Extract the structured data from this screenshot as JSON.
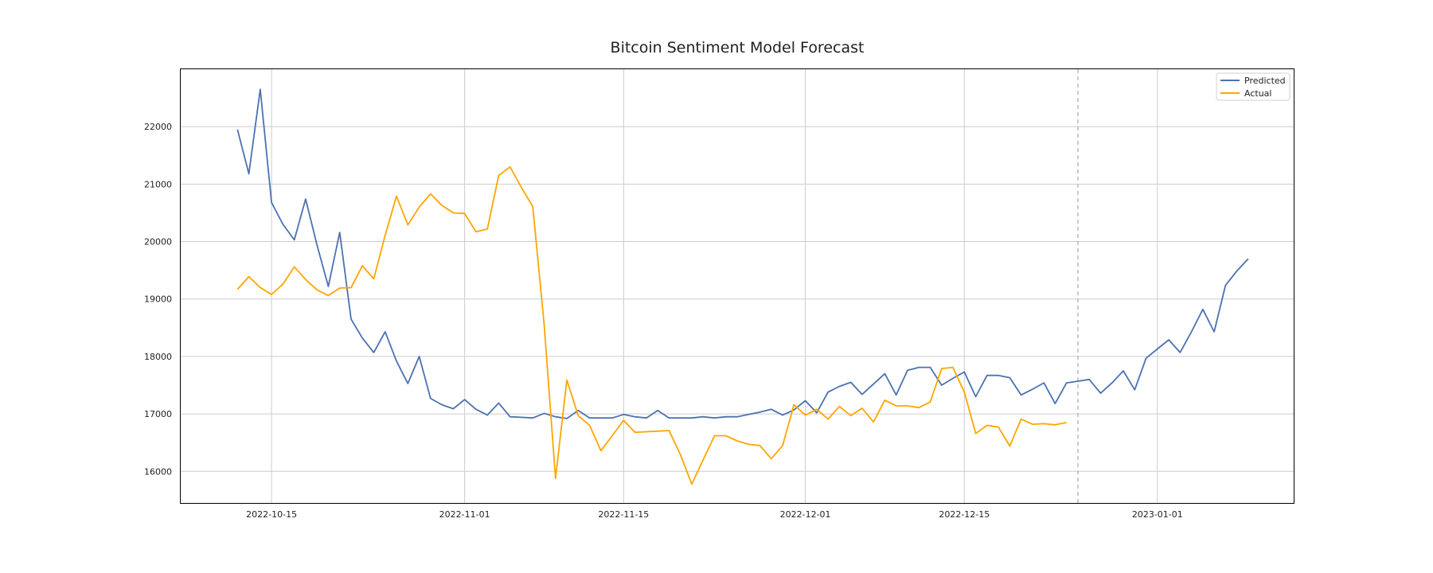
{
  "chart_data": {
    "type": "line",
    "title": "Bitcoin Sentiment Model Forecast",
    "xlabel": "",
    "ylabel": "",
    "x_axis": "date",
    "xlim": [
      "2022-10-07",
      "2023-01-13"
    ],
    "ylim": [
      15450,
      23000
    ],
    "x_ticks": [
      "2022-10-15",
      "2022-11-01",
      "2022-11-15",
      "2022-12-01",
      "2022-12-15",
      "2023-01-01"
    ],
    "y_ticks": [
      16000,
      17000,
      18000,
      19000,
      20000,
      21000,
      22000
    ],
    "grid": true,
    "legend": "top-right",
    "forecast_start": "2022-12-25",
    "colors": {
      "Predicted": "#4c72b0",
      "Actual": "#ffa500",
      "forecast_marker": "#b0b0b0"
    },
    "series": [
      {
        "name": "Predicted",
        "start": "2022-10-12",
        "values": [
          21950,
          21180,
          22650,
          20680,
          20300,
          20030,
          20740,
          19940,
          19220,
          20160,
          18650,
          18320,
          18070,
          18430,
          17920,
          17530,
          18000,
          17270,
          17160,
          17090,
          17250,
          17080,
          16980,
          17190,
          16950,
          16940,
          16930,
          17010,
          16950,
          16920,
          17060,
          16930,
          16930,
          16930,
          16990,
          16950,
          16930,
          17060,
          16930,
          16930,
          16930,
          16950,
          16930,
          16950,
          16950,
          16990,
          17030,
          17080,
          16980,
          17070,
          17230,
          17020,
          17380,
          17480,
          17550,
          17340,
          17520,
          17700,
          17330,
          17760,
          17810,
          17810,
          17500,
          17620,
          17730,
          17300,
          17670,
          17670,
          17630,
          17330,
          17430,
          17540,
          17180,
          17540,
          17570,
          17600,
          17360,
          17540,
          17750,
          17420,
          17970,
          18130,
          18290,
          18070,
          18430,
          18820,
          18430,
          19240,
          19490,
          19700
        ]
      },
      {
        "name": "Actual",
        "start": "2022-10-12",
        "values": [
          19170,
          19390,
          19200,
          19080,
          19260,
          19560,
          19340,
          19160,
          19060,
          19190,
          19200,
          19580,
          19350,
          20110,
          20790,
          20290,
          20600,
          20830,
          20630,
          20500,
          20490,
          20170,
          20220,
          21150,
          21300,
          20940,
          20610,
          18560,
          15880,
          17590,
          16970,
          16800,
          16360,
          16620,
          16890,
          16680,
          16690,
          16700,
          16710,
          16290,
          15780,
          16200,
          16620,
          16620,
          16530,
          16470,
          16450,
          16220,
          16450,
          17160,
          16980,
          17080,
          16910,
          17130,
          16970,
          17100,
          16860,
          17240,
          17140,
          17140,
          17110,
          17210,
          17790,
          17810,
          17380,
          16660,
          16800,
          16770,
          16440,
          16910,
          16820,
          16830,
          16810,
          16850
        ]
      }
    ]
  }
}
